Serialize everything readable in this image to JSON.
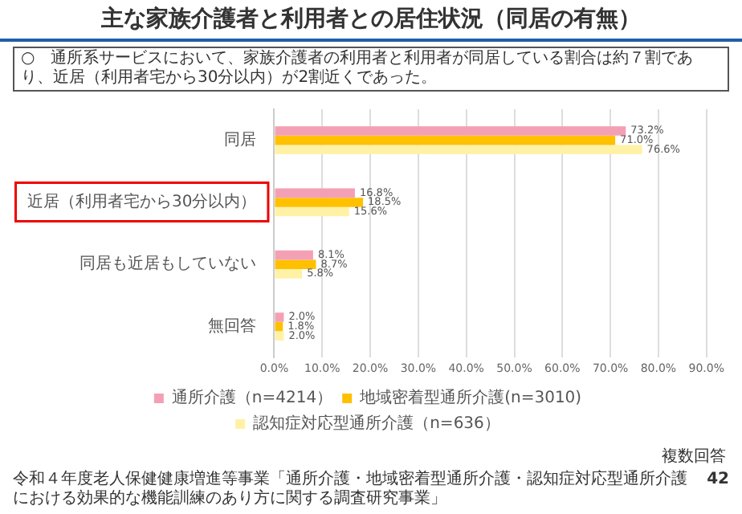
{
  "chart_data": {
    "type": "bar",
    "orientation": "horizontal",
    "title": "主な家族介護者と利用者との居住状況（同居の有無）",
    "subtitle": "○　通所系サービスにおいて、家族介護者の利用者と利用者が同居している割合は約７割であり、近居（利用者宅から30分以内）が2割近くであった。",
    "categories": [
      "同居",
      "近居（利用者宅から30分以内）",
      "同居も近居もしていない",
      "無回答"
    ],
    "series": [
      {
        "name": "通所介護（n=4214）",
        "color": "#f4a0b4",
        "values": [
          73.2,
          16.8,
          8.1,
          2.0
        ],
        "value_labels": [
          "73.2%",
          "16.8%",
          "8.1%",
          "2.0%"
        ]
      },
      {
        "name": "地域密着型通所介護(n=3010)",
        "color": "#ffc000",
        "values": [
          71.0,
          18.5,
          8.7,
          1.8
        ],
        "value_labels": [
          "71.0%",
          "18.5%",
          "8.7%",
          "1.8%"
        ]
      },
      {
        "name": "認知症対応型通所介護（n=636）",
        "color": "#fff2a6",
        "values": [
          76.6,
          15.6,
          5.8,
          2.0
        ],
        "value_labels": [
          "76.6%",
          "15.6%",
          "5.8%",
          "2.0%"
        ]
      }
    ],
    "xlim": [
      0,
      90
    ],
    "xticks": [
      {
        "value": 0,
        "label": "0.0%"
      },
      {
        "value": 10,
        "label": "10.0%"
      },
      {
        "value": 20,
        "label": "20.0%"
      },
      {
        "value": 30,
        "label": "30.0%"
      },
      {
        "value": 40,
        "label": "40.0%"
      },
      {
        "value": 50,
        "label": "50.0%"
      },
      {
        "value": 60,
        "label": "60.0%"
      },
      {
        "value": 70,
        "label": "70.0%"
      },
      {
        "value": 80,
        "label": "80.0%"
      },
      {
        "value": 90,
        "label": "90.0%"
      }
    ],
    "grid": "x",
    "legend": "bottom",
    "annotations": [
      "複数回答",
      "令和４年度老人保健健康増進等事業「通所介護・地域密着型通所介護・認知症対応型通所介護における効果的な機能訓練のあり方に関する調査研究事業」",
      "42"
    ]
  }
}
